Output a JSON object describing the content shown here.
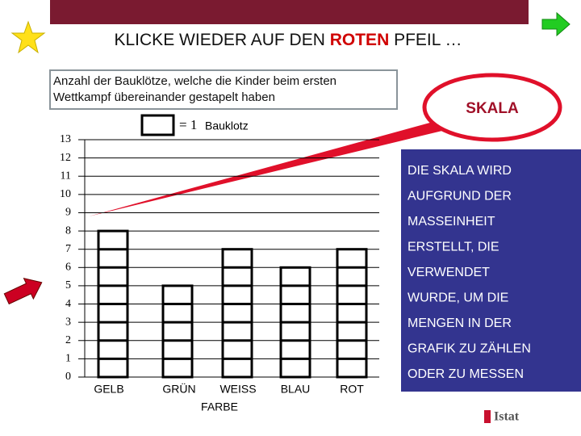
{
  "slide": {
    "title_before": "KLICKE WIEDER AUF DEN",
    "title_highlight": "ROTEN",
    "title_after": "PFEIL …",
    "description": [
      "Anzahl der Bauklötze, welche die Kinder beim ersten",
      "Wettkampf übereinander gestapelt haben"
    ],
    "legend_prefix": "= 1",
    "legend_label": "Bauklotz",
    "callout": "SKALA",
    "explanation": [
      "DIE SKALA WIRD",
      "AUFGRUND DER",
      "MASSEINHEIT",
      "ERSTELLT, DIE",
      "VERWENDET",
      "WURDE, UM DIE",
      "MENGEN IN DER",
      "GRAFIK ZU ZÄHLEN",
      "ODER ZU MESSEN"
    ],
    "logo": "Istat"
  },
  "chart_data": {
    "type": "bar",
    "x_label": "FARBE",
    "categories": [
      "GELB",
      "GRÜN",
      "WEISS",
      "BLAU",
      "ROT"
    ],
    "values": [
      8,
      5,
      7,
      6,
      7
    ],
    "ylim": [
      0,
      13
    ],
    "yticks": [
      0,
      1,
      2,
      3,
      4,
      5,
      6,
      7,
      8,
      9,
      10,
      11,
      12,
      13
    ],
    "grid": true,
    "color": "#ffffff"
  }
}
